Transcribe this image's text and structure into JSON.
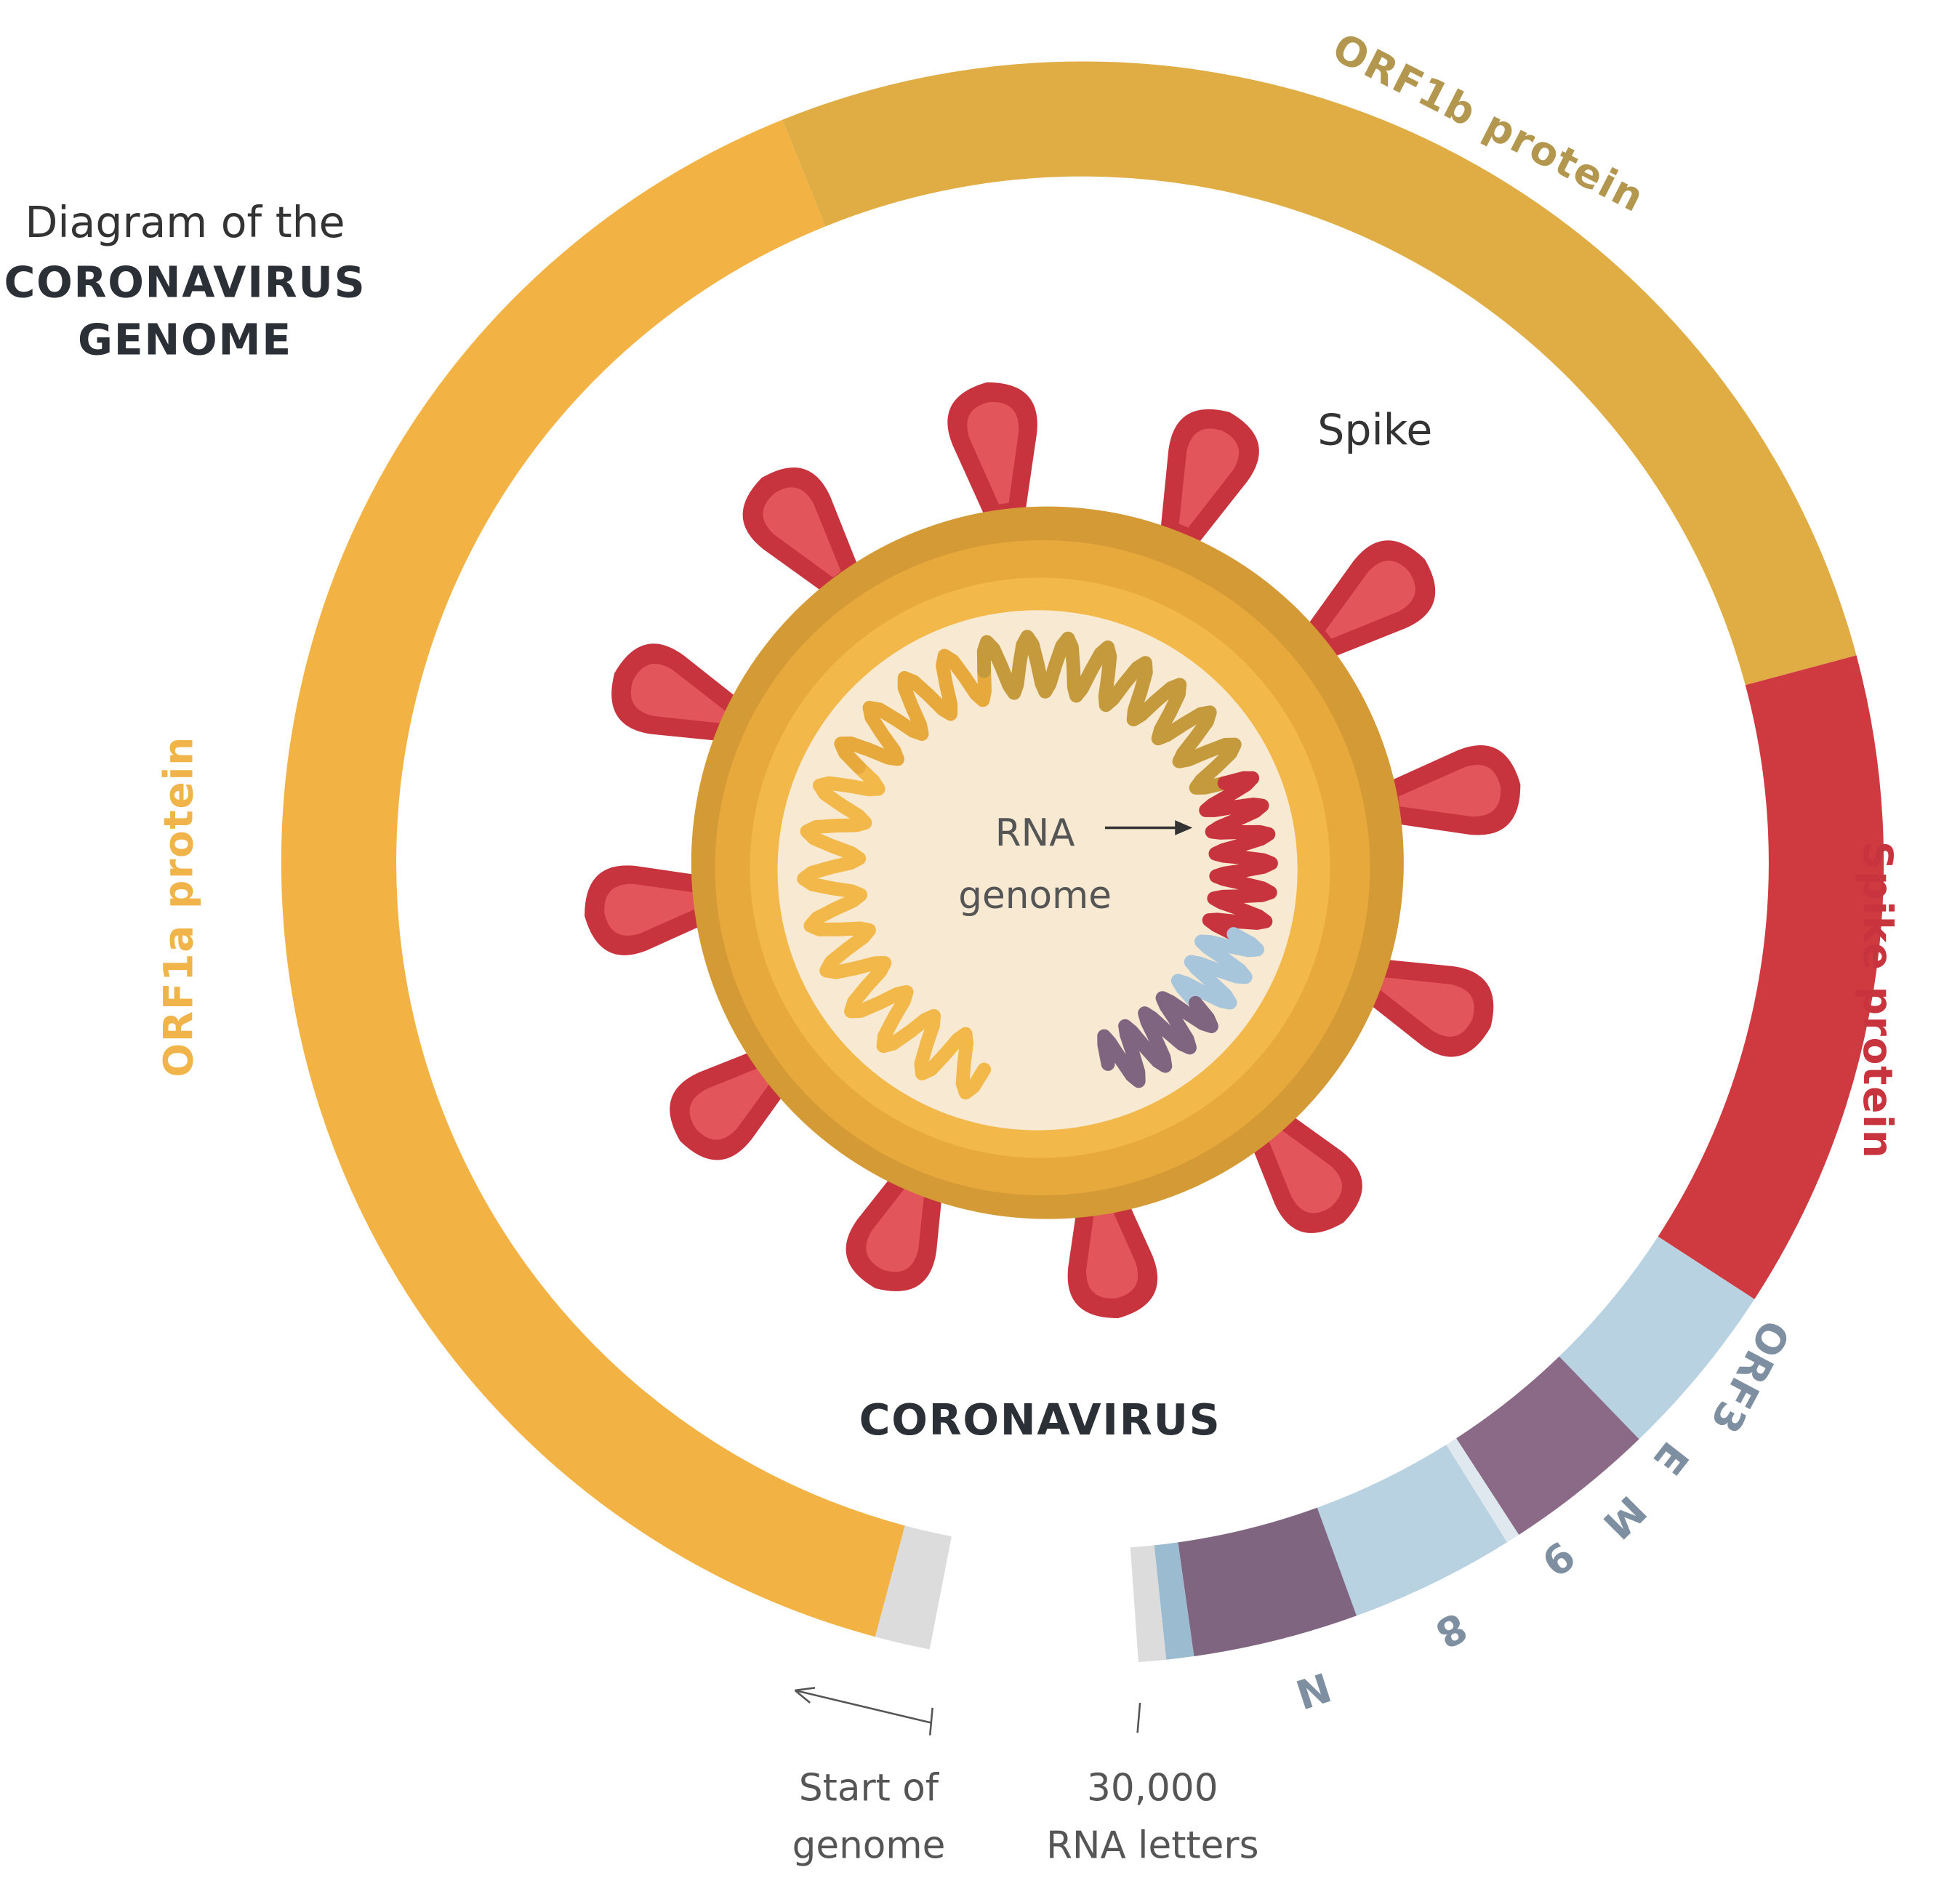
{
  "title": {
    "line1": "Diagram of the",
    "line2": "CORONAVIRUS",
    "line3": "GENOME"
  },
  "genome_labels": {
    "orf1b": "ORF1b protein",
    "orf1a": "ORF1a protein",
    "spike": "Spike protein",
    "orf3": "ORF3",
    "e": "E",
    "m": "M",
    "nine": "9",
    "eight": "8",
    "n": "N"
  },
  "virus": {
    "label": "CORONAVIRUS",
    "spike": "Spike",
    "rna_line1": "RNA",
    "rna_line2": "genome"
  },
  "axis": {
    "start_line1": "Start of",
    "start_line2": "genome",
    "end_line1": "30,000",
    "end_line2": "RNA letters"
  }
}
